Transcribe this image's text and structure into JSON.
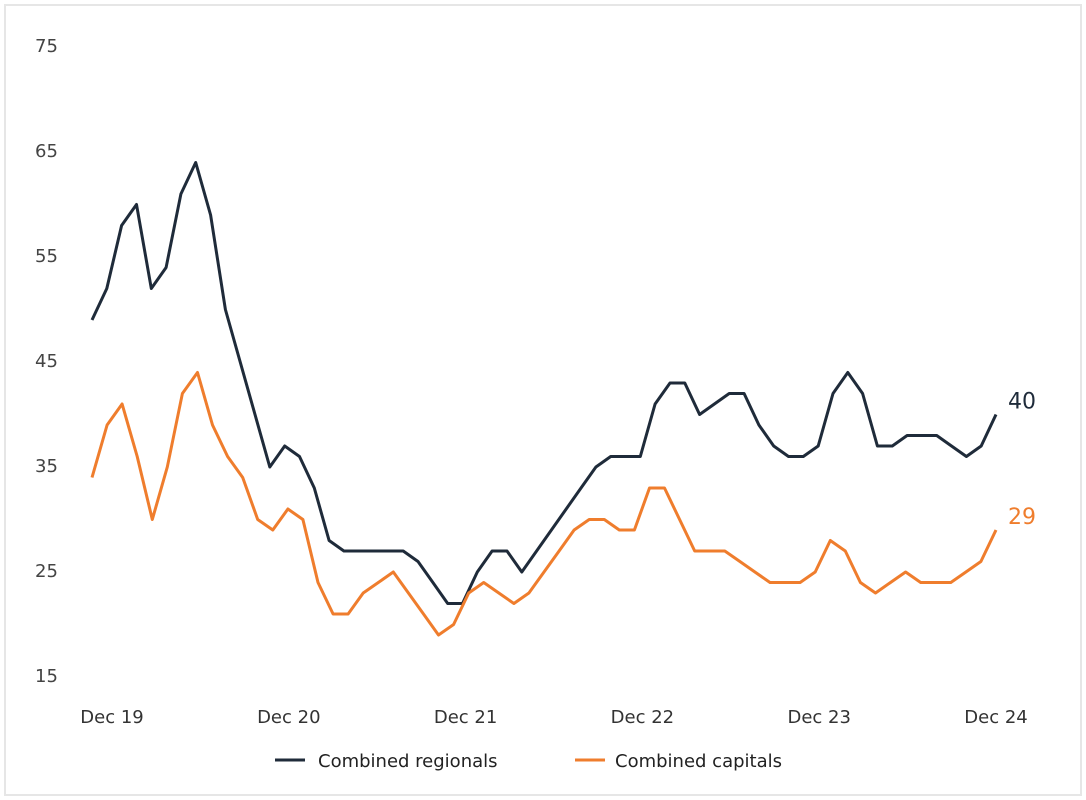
{
  "chart_data": {
    "type": "line",
    "title": "",
    "xlabel": "",
    "ylabel": "",
    "ylim": [
      15,
      75
    ],
    "yticks": [
      "75",
      "65",
      "55",
      "45",
      "35",
      "25",
      "15"
    ],
    "xticks": [
      "Dec 19",
      "Dec 20",
      "Dec 21",
      "Dec 22",
      "Dec 23",
      "Dec 24"
    ],
    "xrange": [
      "Dec 19",
      "Dec 24"
    ],
    "grid": false,
    "legend_position": "bottom",
    "series": [
      {
        "name": "Combined regionals",
        "color": "#1f2b3a",
        "end_label": "40",
        "values": [
          49,
          52,
          58,
          60,
          52,
          54,
          61,
          64,
          59,
          50,
          45,
          40,
          35,
          37,
          36,
          33,
          28,
          27,
          27,
          27,
          27,
          27,
          26,
          24,
          22,
          22,
          25,
          27,
          27,
          25,
          27,
          29,
          31,
          33,
          35,
          36,
          36,
          36,
          41,
          43,
          43,
          40,
          41,
          42,
          42,
          39,
          37,
          36,
          36,
          37,
          42,
          44,
          42,
          37,
          37,
          38,
          38,
          38,
          37,
          36,
          37,
          40
        ]
      },
      {
        "name": "Combined capitals",
        "color": "#ef7d2d",
        "end_label": "29",
        "values": [
          34,
          39,
          41,
          36,
          30,
          35,
          42,
          44,
          39,
          36,
          34,
          30,
          29,
          31,
          30,
          24,
          21,
          21,
          23,
          24,
          25,
          23,
          21,
          19,
          20,
          23,
          24,
          23,
          22,
          23,
          25,
          27,
          29,
          30,
          30,
          29,
          29,
          33,
          33,
          30,
          27,
          27,
          27,
          26,
          25,
          24,
          24,
          24,
          25,
          28,
          27,
          24,
          23,
          24,
          25,
          24,
          24,
          24,
          25,
          26,
          29
        ]
      }
    ]
  }
}
